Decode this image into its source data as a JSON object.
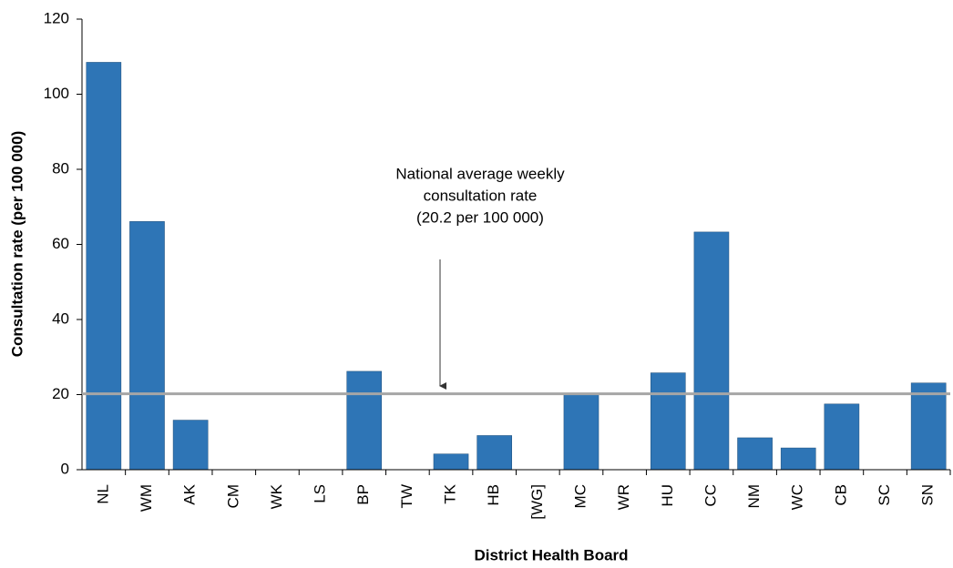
{
  "chart_data": {
    "type": "bar",
    "x_label": "District Health Board",
    "y_label": "Consultation rate (per 100 000)",
    "categories": [
      "NL",
      "WM",
      "AK",
      "CM",
      "WK",
      "LS",
      "BP",
      "TW",
      "TK",
      "HB",
      "[WG]",
      "MC",
      "WR",
      "HU",
      "CC",
      "NM",
      "WC",
      "CB",
      "SC",
      "SN"
    ],
    "values": [
      108.5,
      66.1,
      13.2,
      0,
      0,
      0,
      26.2,
      0,
      4.2,
      9.1,
      0,
      20,
      0,
      25.8,
      63.3,
      8.5,
      5.8,
      17.5,
      0,
      23.1
    ],
    "color": "#2e75b6",
    "ylim": [
      0,
      120
    ],
    "yticks": [
      0,
      20,
      40,
      60,
      80,
      100,
      120
    ],
    "reference_line": {
      "value": 20.2,
      "color": "#a6a6a6"
    },
    "annotation": [
      "National average weekly",
      "consultation rate",
      "(20.2 per 100 000)"
    ]
  }
}
